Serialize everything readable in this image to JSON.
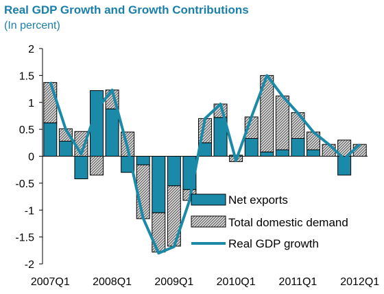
{
  "chart_data": {
    "type": "bar",
    "title": "Real GDP Growth and Growth Contributions",
    "subtitle": "(In percent)",
    "xlabel": "",
    "ylabel": "",
    "ylim": [
      -2,
      2
    ],
    "yticks": [
      "2",
      "1.5",
      "1",
      "0.5",
      "0",
      "-0.5",
      "-1",
      "-1.5",
      "-2"
    ],
    "ytick_values": [
      2,
      1.5,
      1,
      0.5,
      0,
      -0.5,
      -1,
      -1.5,
      -2
    ],
    "x_tick_labels": [
      "2007Q1",
      "2008Q1",
      "2009Q1",
      "2010Q1",
      "2011Q1",
      "2012Q1"
    ],
    "categories": [
      "2007Q1",
      "2007Q2",
      "2007Q3",
      "2007Q4",
      "2008Q1",
      "2008Q2",
      "2008Q3",
      "2008Q4",
      "2009Q1",
      "2009Q2",
      "2009Q3",
      "2009Q4",
      "2010Q1",
      "2010Q2",
      "2010Q3",
      "2010Q4",
      "2011Q1",
      "2011Q2",
      "2011Q3",
      "2011Q4",
      "2012Q1"
    ],
    "grid": false,
    "legend_placement": "lower-right",
    "colors": {
      "net_exports": "#1a8aa8",
      "hatch_fill": "#cfcfcf",
      "line": "#1a8aa8"
    },
    "series": [
      {
        "name": "Net exports",
        "kind": "stacked-bar",
        "pattern": "solid",
        "values": [
          0.62,
          0.28,
          -0.42,
          1.22,
          0.88,
          -0.3,
          -0.16,
          -1.05,
          -0.55,
          -0.62,
          0.25,
          0.72,
          0.02,
          0.33,
          0.08,
          0.12,
          0.33,
          0.12,
          0.0,
          -0.35,
          0.0
        ]
      },
      {
        "name": "Total domestic demand",
        "kind": "stacked-bar",
        "pattern": "hatched",
        "values": [
          0.75,
          0.23,
          0.46,
          -0.35,
          0.35,
          0.45,
          -1.0,
          -0.73,
          -1.12,
          -0.2,
          0.45,
          0.25,
          -0.1,
          0.4,
          1.42,
          1.0,
          0.48,
          0.33,
          0.22,
          0.3,
          0.22
        ]
      },
      {
        "name": "Real GDP growth",
        "kind": "line",
        "values": [
          1.38,
          0.5,
          0.04,
          0.87,
          1.23,
          0.15,
          -1.15,
          -1.8,
          -1.68,
          -0.82,
          0.7,
          0.97,
          -0.08,
          0.73,
          1.5,
          1.12,
          0.8,
          0.45,
          0.22,
          -0.05,
          0.22
        ]
      }
    ]
  }
}
